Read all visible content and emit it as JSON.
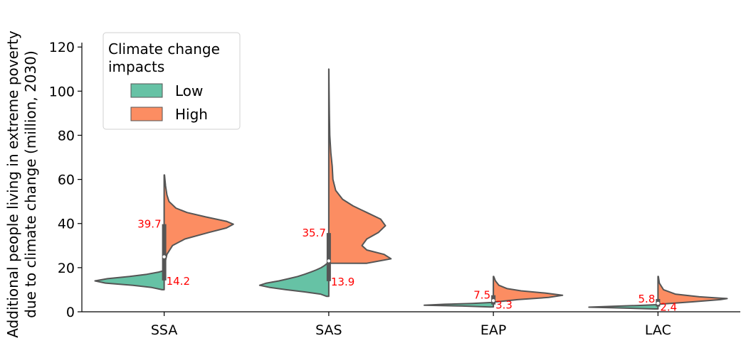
{
  "chart_data": {
    "type": "violin",
    "split": true,
    "ylabel": "Additional people living in extreme poverty due to climate change (million, 2030)",
    "ylabel_lines": [
      "Additional people living in extreme poverty",
      "due to climate change (million, 2030)"
    ],
    "categories": [
      "SSA",
      "SAS",
      "EAP",
      "LAC"
    ],
    "ylim": [
      0,
      122
    ],
    "yticks": [
      0,
      20,
      40,
      60,
      80,
      100,
      120
    ],
    "legend": {
      "title": "Climate change impacts",
      "title_lines": [
        "Climate change",
        "impacts"
      ],
      "placement": "upper-left",
      "entries": [
        {
          "name": "Low",
          "color": "#66c2a5"
        },
        {
          "name": "High",
          "color": "#fc8d62"
        }
      ]
    },
    "series": [
      {
        "name": "Low",
        "color": "#66c2a5",
        "medians": [
          14.2,
          13.9,
          3.3,
          2.4
        ],
        "ranges": [
          [
            10,
            18.5
          ],
          [
            7,
            22
          ],
          [
            2.2,
            4.2
          ],
          [
            1.3,
            3.2
          ]
        ],
        "density": [
          [
            [
              10,
              0.03
            ],
            [
              11,
              0.18
            ],
            [
              12,
              0.45
            ],
            [
              13,
              0.85
            ],
            [
              14,
              1.0
            ],
            [
              15,
              0.82
            ],
            [
              16,
              0.5
            ],
            [
              17,
              0.25
            ],
            [
              18,
              0.08
            ],
            [
              18.5,
              0.02
            ]
          ],
          [
            [
              7,
              0.03
            ],
            [
              8,
              0.12
            ],
            [
              9,
              0.35
            ],
            [
              10,
              0.62
            ],
            [
              11,
              0.85
            ],
            [
              12,
              1.0
            ],
            [
              13,
              0.9
            ],
            [
              14,
              0.72
            ],
            [
              15,
              0.58
            ],
            [
              16,
              0.45
            ],
            [
              17,
              0.35
            ],
            [
              18,
              0.26
            ],
            [
              19,
              0.18
            ],
            [
              20,
              0.11
            ],
            [
              21,
              0.06
            ],
            [
              22,
              0.02
            ]
          ],
          [
            [
              2.2,
              0.05
            ],
            [
              2.6,
              0.45
            ],
            [
              3.0,
              1.0
            ],
            [
              3.4,
              0.7
            ],
            [
              3.8,
              0.3
            ],
            [
              4.2,
              0.05
            ]
          ],
          [
            [
              1.3,
              0.05
            ],
            [
              1.7,
              0.5
            ],
            [
              2.1,
              1.0
            ],
            [
              2.5,
              0.65
            ],
            [
              2.9,
              0.25
            ],
            [
              3.2,
              0.05
            ]
          ]
        ]
      },
      {
        "name": "High",
        "color": "#fc8d62",
        "medians": [
          39.7,
          35.7,
          7.5,
          5.8
        ],
        "ranges": [
          [
            22,
            62
          ],
          [
            22,
            110
          ],
          [
            4.5,
            16
          ],
          [
            3.5,
            16
          ]
        ],
        "density": [
          [
            [
              22,
              0.01
            ],
            [
              26,
              0.04
            ],
            [
              30,
              0.12
            ],
            [
              33,
              0.3
            ],
            [
              36,
              0.65
            ],
            [
              38,
              0.9
            ],
            [
              39.7,
              1.0
            ],
            [
              41,
              0.9
            ],
            [
              43,
              0.6
            ],
            [
              45,
              0.33
            ],
            [
              47,
              0.17
            ],
            [
              50,
              0.07
            ],
            [
              53,
              0.04
            ],
            [
              57,
              0.02
            ],
            [
              62,
              0.005
            ]
          ],
          [
            [
              22,
              0.55
            ],
            [
              24,
              0.9
            ],
            [
              26,
              0.8
            ],
            [
              28,
              0.55
            ],
            [
              30,
              0.48
            ],
            [
              33,
              0.55
            ],
            [
              36,
              0.72
            ],
            [
              39,
              0.82
            ],
            [
              42,
              0.75
            ],
            [
              45,
              0.55
            ],
            [
              48,
              0.35
            ],
            [
              51,
              0.2
            ],
            [
              55,
              0.1
            ],
            [
              60,
              0.06
            ],
            [
              66,
              0.05
            ],
            [
              72,
              0.03
            ],
            [
              80,
              0.015
            ],
            [
              90,
              0.008
            ],
            [
              100,
              0.004
            ],
            [
              110,
              0.001
            ]
          ],
          [
            [
              4.5,
              0.05
            ],
            [
              5.5,
              0.35
            ],
            [
              6.5,
              0.8
            ],
            [
              7.5,
              1.0
            ],
            [
              8.5,
              0.75
            ],
            [
              9.5,
              0.4
            ],
            [
              10.5,
              0.2
            ],
            [
              12,
              0.08
            ],
            [
              14,
              0.03
            ],
            [
              16,
              0.005
            ]
          ],
          [
            [
              3.5,
              0.05
            ],
            [
              4.5,
              0.5
            ],
            [
              5.5,
              0.9
            ],
            [
              6.0,
              1.0
            ],
            [
              6.8,
              0.6
            ],
            [
              8,
              0.25
            ],
            [
              10,
              0.08
            ],
            [
              13,
              0.02
            ],
            [
              16,
              0.005
            ]
          ]
        ]
      }
    ],
    "annotations": [
      {
        "category": "SSA",
        "series": "High",
        "text": "39.7",
        "value": 39.7
      },
      {
        "category": "SSA",
        "series": "Low",
        "text": "14.2",
        "value": 14.2
      },
      {
        "category": "SAS",
        "series": "High",
        "text": "35.7",
        "value": 35.7
      },
      {
        "category": "SAS",
        "series": "Low",
        "text": "13.9",
        "value": 13.9
      },
      {
        "category": "EAP",
        "series": "High",
        "text": "7.5",
        "value": 7.5
      },
      {
        "category": "EAP",
        "series": "Low",
        "text": "3.3",
        "value": 3.3
      },
      {
        "category": "LAC",
        "series": "High",
        "text": "5.8",
        "value": 5.8
      },
      {
        "category": "LAC",
        "series": "Low",
        "text": "2.4",
        "value": 2.4
      }
    ],
    "grid": false
  }
}
